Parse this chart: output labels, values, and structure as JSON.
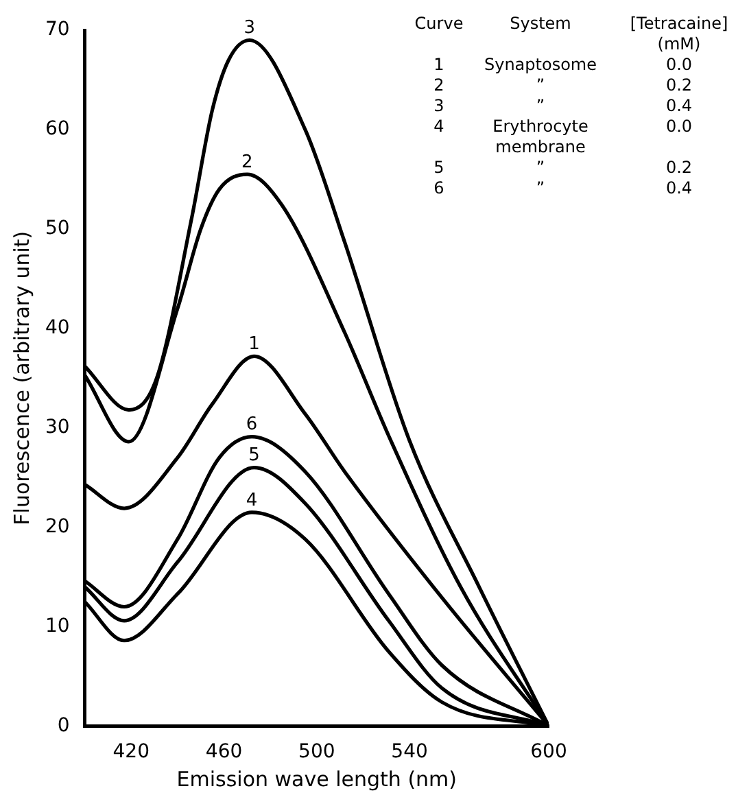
{
  "chart_data": {
    "type": "line",
    "xlabel": "Emission wave length (nm)",
    "ylabel": "Fluorescence (arbitrary unit)",
    "xlim": [
      400,
      600
    ],
    "xticks": [
      420,
      460,
      500,
      540,
      600
    ],
    "ylim": [
      0,
      70
    ],
    "yticks": [
      0,
      10,
      20,
      30,
      40,
      50,
      60,
      70
    ],
    "grid": false,
    "legend": false,
    "marker": "none",
    "line_style": "solid",
    "series": [
      {
        "name": "1",
        "color": "#000000",
        "x": [
          400,
          417,
          440,
          455,
          473,
          495,
          512,
          554,
          600
        ],
        "values": [
          24.3,
          21.9,
          27,
          32.4,
          37.2,
          31.4,
          25.6,
          12.9,
          0
        ]
      },
      {
        "name": "2",
        "color": "#000000",
        "x": [
          400,
          419,
          440,
          450,
          458,
          470,
          485,
          512,
          531,
          562,
          600
        ],
        "values": [
          35.3,
          28.6,
          42,
          50,
          54,
          55.5,
          52.4,
          39.6,
          29.2,
          14,
          0
        ]
      },
      {
        "name": "3",
        "color": "#000000",
        "x": [
          400,
          419,
          431,
          446,
          455,
          462,
          471,
          495,
          512,
          540,
          570,
          600
        ],
        "values": [
          36.2,
          31.8,
          35,
          51,
          62,
          67,
          69,
          60,
          48.7,
          28.7,
          14,
          0
        ]
      },
      {
        "name": "4",
        "color": "#000000",
        "x": [
          400,
          417,
          440,
          472,
          495,
          531,
          554,
          600
        ],
        "values": [
          12.5,
          8.6,
          13.3,
          21.5,
          18.8,
          7.5,
          2.4,
          0
        ]
      },
      {
        "name": "5",
        "color": "#000000",
        "x": [
          400,
          417,
          440,
          473,
          495,
          531,
          554,
          600
        ],
        "values": [
          14,
          10.6,
          16.5,
          26,
          22.4,
          10.6,
          3.8,
          0
        ]
      },
      {
        "name": "6",
        "color": "#000000",
        "x": [
          400,
          417,
          440,
          458,
          472,
          495,
          531,
          554,
          600
        ],
        "values": [
          14.6,
          12,
          18.8,
          27,
          29.1,
          25.6,
          13.3,
          6.1,
          0
        ]
      }
    ],
    "annotations": [
      "Curve",
      "System",
      "[Tetracaine]\n(mM)",
      "1",
      "Synaptosome",
      "0.0",
      "2",
      "”",
      "0.2",
      "3",
      "”",
      "0.4",
      "4",
      "Erythrocyte\nmembrane",
      "0.0",
      "5",
      "”",
      "0.2",
      "6",
      "”",
      "0.4"
    ]
  }
}
